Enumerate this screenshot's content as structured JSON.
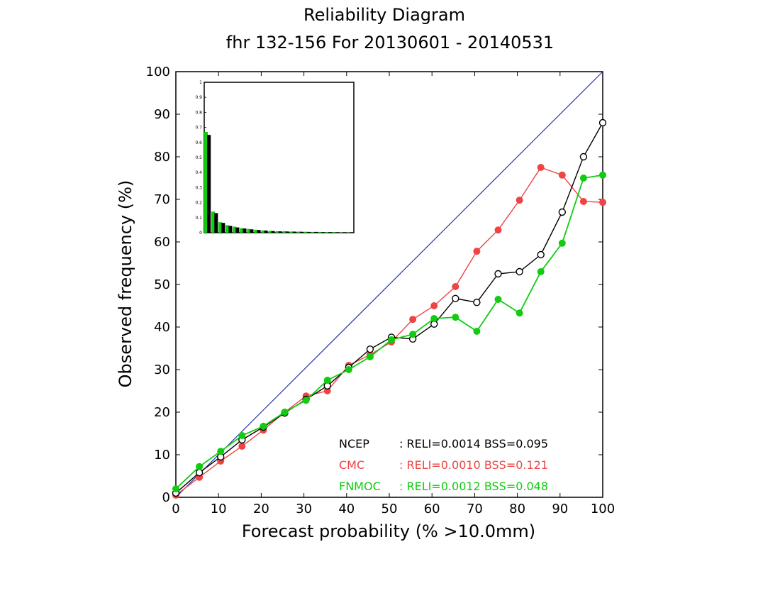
{
  "chart_data": {
    "type": "line",
    "title": "Reliability Diagram",
    "subtitle": "fhr 132-156 For 20130601 - 20140531",
    "xlabel": "Forecast probability (% >10.0mm)",
    "ylabel": "Observed frequency (%)",
    "xlim": [
      0,
      100
    ],
    "ylim": [
      0,
      100
    ],
    "xticks": [
      "0",
      "10",
      "20",
      "30",
      "40",
      "50",
      "60",
      "70",
      "80",
      "90",
      "100"
    ],
    "yticks": [
      "0",
      "10",
      "20",
      "30",
      "40",
      "50",
      "60",
      "70",
      "80",
      "90",
      "100"
    ],
    "grid": false,
    "diagonal_color": "#2233aa",
    "x": [
      0,
      5.5,
      10.5,
      15.5,
      20.5,
      25.5,
      30.5,
      35.5,
      40.5,
      45.5,
      50.5,
      55.5,
      60.5,
      65.5,
      70.5,
      75.5,
      80.5,
      85.5,
      90.5,
      95.5,
      100
    ],
    "series": [
      {
        "name": "NCEP",
        "color": "#000000",
        "marker": "open-circle",
        "values": [
          1.0,
          5.8,
          9.5,
          13.5,
          16.5,
          19.8,
          23.0,
          26.2,
          30.5,
          34.8,
          37.6,
          37.2,
          40.7,
          46.7,
          45.8,
          52.5,
          53.0,
          57.0,
          67.0,
          80.0,
          88.0
        ],
        "stats": ": RELI=0.0014 BSS=0.095"
      },
      {
        "name": "CMC",
        "color": "#ee4444",
        "marker": "filled-circle",
        "values": [
          0.5,
          4.7,
          8.5,
          12.0,
          15.8,
          20.0,
          23.8,
          25.0,
          31.0,
          33.5,
          36.5,
          41.8,
          45.0,
          49.5,
          57.8,
          62.8,
          69.8,
          77.5,
          75.7,
          69.5,
          69.3
        ],
        "stats": ": RELI=0.0010 BSS=0.121"
      },
      {
        "name": "FNMOC",
        "color": "#11cc11",
        "marker": "filled-circle",
        "values": [
          2.0,
          7.2,
          10.8,
          14.5,
          16.7,
          20.0,
          22.8,
          27.5,
          30.0,
          33.0,
          37.0,
          38.3,
          42.0,
          42.3,
          39.0,
          46.5,
          43.3,
          53.0,
          59.7,
          75.0,
          75.7
        ],
        "stats": ": RELI=0.0012 BSS=0.048"
      }
    ],
    "inset": {
      "type": "bar",
      "yticks": [
        "0",
        "0.1",
        "0.2",
        "0.3",
        "0.4",
        "0.5",
        "0.6",
        "0.7",
        "0.8",
        "0.9",
        "1"
      ],
      "ylim": [
        0,
        1
      ],
      "series": [
        {
          "name": "FNMOC",
          "color": "#11cc11",
          "values": [
            0.67,
            0.14,
            0.07,
            0.05,
            0.04,
            0.03,
            0.025,
            0.02,
            0.015,
            0.012,
            0.01,
            0.01,
            0.008,
            0.007,
            0.006,
            0.005,
            0.005,
            0.004,
            0.004,
            0.003,
            0.003
          ]
        },
        {
          "name": "NCEP",
          "color": "#000000",
          "values": [
            0.65,
            0.13,
            0.065,
            0.045,
            0.035,
            0.028,
            0.022,
            0.018,
            0.014,
            0.011,
            0.009,
            0.008,
            0.007,
            0.006,
            0.005,
            0.005,
            0.004,
            0.004,
            0.003,
            0.003,
            0.003
          ]
        }
      ]
    }
  }
}
